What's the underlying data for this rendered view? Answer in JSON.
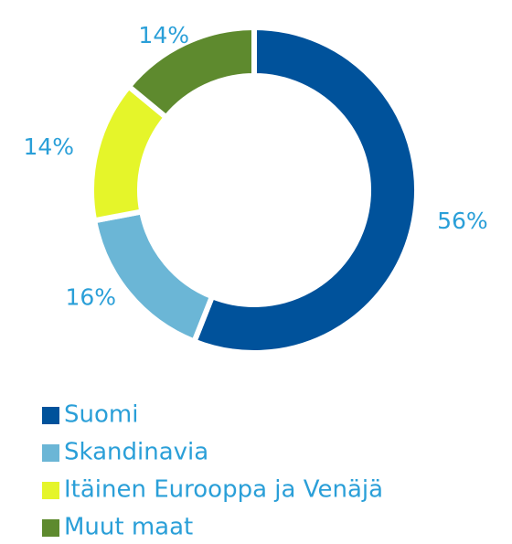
{
  "chart_data": {
    "type": "donut",
    "categories": [
      "Suomi",
      "Skandinavia",
      "Itäinen Eurooppa ja Venäjä",
      "Muut maat"
    ],
    "values": [
      56,
      16,
      14,
      14
    ],
    "value_labels": [
      "56%",
      "16%",
      "14%",
      "14%"
    ],
    "colors": [
      "#00529b",
      "#6bb6d6",
      "#e5f52a",
      "#5e8a2e"
    ],
    "legend": "bottom"
  }
}
